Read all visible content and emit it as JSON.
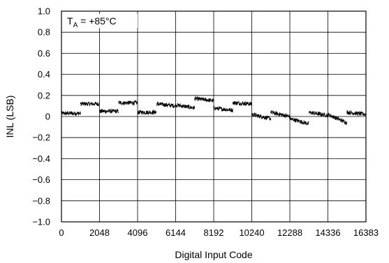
{
  "chart_data": {
    "type": "line",
    "xlabel": "Digital Input Code",
    "ylabel": "INL (LSB)",
    "xlim": [
      0,
      16383
    ],
    "ylim": [
      -1.0,
      1.0
    ],
    "grid": true,
    "x_ticks": [
      0,
      2048,
      4096,
      6144,
      8192,
      10240,
      12288,
      14336,
      16383
    ],
    "x_tick_labels": [
      "0",
      "2048",
      "4096",
      "6144",
      "8192",
      "10240",
      "12288",
      "14336",
      "16383"
    ],
    "y_ticks": [
      1.0,
      0.8,
      0.6,
      0.4,
      0.2,
      0,
      -0.2,
      -0.4,
      -0.6,
      -0.8,
      -1.0
    ],
    "y_tick_labels": [
      "1.0",
      "0.8",
      "0.6",
      "0.4",
      "0.2",
      "0",
      "−0.2",
      "−0.4",
      "−0.6",
      "−0.8",
      "−1.0"
    ],
    "annotation": {
      "main": "T",
      "sub": "A",
      "rest": " = +85°C"
    },
    "series": [
      {
        "color": "#000000",
        "noise_amplitude": 0.02,
        "segments": [
          {
            "x_start": 0,
            "x_end": 1024,
            "y_start": 0.03,
            "y_end": 0.03
          },
          {
            "x_start": 1024,
            "x_end": 2048,
            "y_start": 0.12,
            "y_end": 0.12
          },
          {
            "x_start": 2048,
            "x_end": 3072,
            "y_start": 0.05,
            "y_end": 0.05
          },
          {
            "x_start": 3072,
            "x_end": 4096,
            "y_start": 0.13,
            "y_end": 0.13
          },
          {
            "x_start": 4096,
            "x_end": 5120,
            "y_start": 0.04,
            "y_end": 0.04
          },
          {
            "x_start": 5120,
            "x_end": 6144,
            "y_start": 0.12,
            "y_end": 0.1
          },
          {
            "x_start": 6144,
            "x_end": 7168,
            "y_start": 0.11,
            "y_end": 0.08
          },
          {
            "x_start": 7168,
            "x_end": 8192,
            "y_start": 0.17,
            "y_end": 0.15
          },
          {
            "x_start": 8192,
            "x_end": 9216,
            "y_start": 0.08,
            "y_end": 0.06
          },
          {
            "x_start": 9216,
            "x_end": 10240,
            "y_start": 0.13,
            "y_end": 0.12
          },
          {
            "x_start": 10240,
            "x_end": 11264,
            "y_start": 0.02,
            "y_end": -0.02
          },
          {
            "x_start": 11264,
            "x_end": 12288,
            "y_start": 0.04,
            "y_end": 0.0
          },
          {
            "x_start": 12288,
            "x_end": 13312,
            "y_start": -0.02,
            "y_end": -0.07
          },
          {
            "x_start": 13312,
            "x_end": 14336,
            "y_start": 0.04,
            "y_end": 0.01
          },
          {
            "x_start": 14336,
            "x_end": 15360,
            "y_start": 0.02,
            "y_end": -0.06
          },
          {
            "x_start": 15360,
            "x_end": 16383,
            "y_start": 0.04,
            "y_end": 0.02
          }
        ]
      }
    ]
  }
}
